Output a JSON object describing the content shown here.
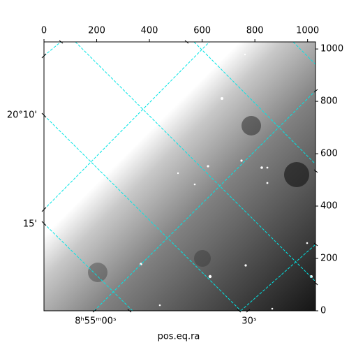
{
  "chart_data": {
    "type": "image",
    "xlabel": "pos.eq.ra",
    "xlim": [
      0,
      1030
    ],
    "ylim": [
      0,
      1027
    ],
    "xticks": [
      0,
      200,
      400,
      600,
      800,
      1000
    ],
    "yticks": [
      0,
      200,
      400,
      600,
      800,
      1000
    ],
    "wcs_xticks": [
      "8ʰ55ᵐ00ˢ",
      "30ˢ"
    ],
    "wcs_yticks": [
      "20°10'",
      "15'"
    ],
    "grid_color": "#00e5e5"
  }
}
